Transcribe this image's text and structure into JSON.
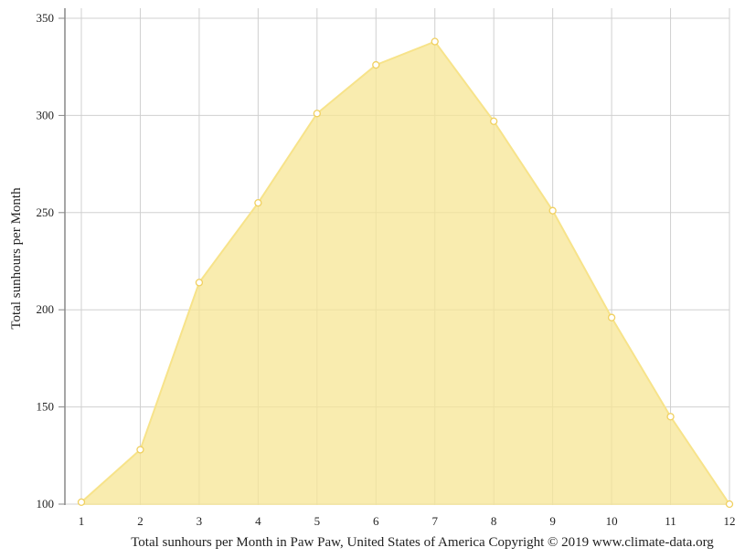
{
  "chart_data": {
    "type": "area",
    "x": [
      1,
      2,
      3,
      4,
      5,
      6,
      7,
      8,
      9,
      10,
      11,
      12
    ],
    "series": [
      {
        "values": [
          101,
          128,
          214,
          255,
          301,
          326,
          338,
          297,
          251,
          196,
          145,
          100
        ]
      }
    ],
    "xlabel": "Total sunhours per Month in Paw Paw, United States of America Copyright © 2019 www.climate-data.org",
    "ylabel": "Total sunhours per Month",
    "x_ticks": [
      "1",
      "2",
      "3",
      "4",
      "5",
      "6",
      "7",
      "8",
      "9",
      "10",
      "11",
      "12"
    ],
    "y_ticks": [
      "100",
      "150",
      "200",
      "250",
      "300",
      "350"
    ],
    "xlim": [
      1,
      12
    ],
    "ylim": [
      100,
      355
    ],
    "grid": true,
    "colors": {
      "fill": "#f7e594",
      "line": "#f7e38a",
      "marker_fill": "#ffffff",
      "marker_stroke": "#f0d060",
      "grid": "#d0d0d0",
      "axis": "#888888"
    }
  }
}
